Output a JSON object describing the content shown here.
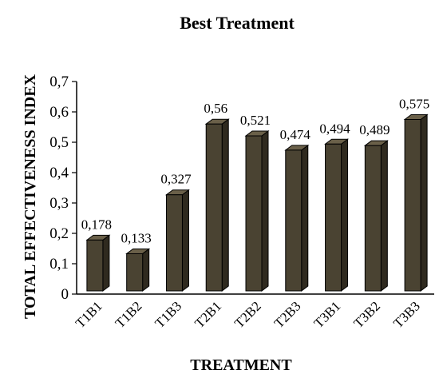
{
  "chart_data": {
    "type": "bar",
    "title": "Best Treatment",
    "xlabel": "TREATMENT",
    "ylabel": "TOTAL EFFECTIVENESS INDEX",
    "categories": [
      "T1B1",
      "T1B2",
      "T1B3",
      "T2B1",
      "T2B2",
      "T2B3",
      "T3B1",
      "T3B2",
      "T3B3"
    ],
    "values": [
      0.178,
      0.133,
      0.327,
      0.56,
      0.521,
      0.474,
      0.494,
      0.489,
      0.575
    ],
    "data_labels": [
      "0,178",
      "0,133",
      "0,327",
      "0,56",
      "0,521",
      "0,474",
      "0,494",
      "0,489",
      "0,575"
    ],
    "yticks": [
      0,
      0.1,
      0.2,
      0.3,
      0.4,
      0.5,
      0.6,
      0.7
    ],
    "ytick_labels": [
      "0",
      "0,1",
      "0,2",
      "0,3",
      "0,4",
      "0,5",
      "0,6",
      "0,7"
    ],
    "ylim": [
      0,
      0.7
    ],
    "grid": false,
    "bar_style": "3d-column",
    "colors": {
      "bar_front": "#4a4332",
      "bar_side": "#2f2a1f",
      "bar_top": "#6a6049",
      "outline": "#000000"
    }
  }
}
